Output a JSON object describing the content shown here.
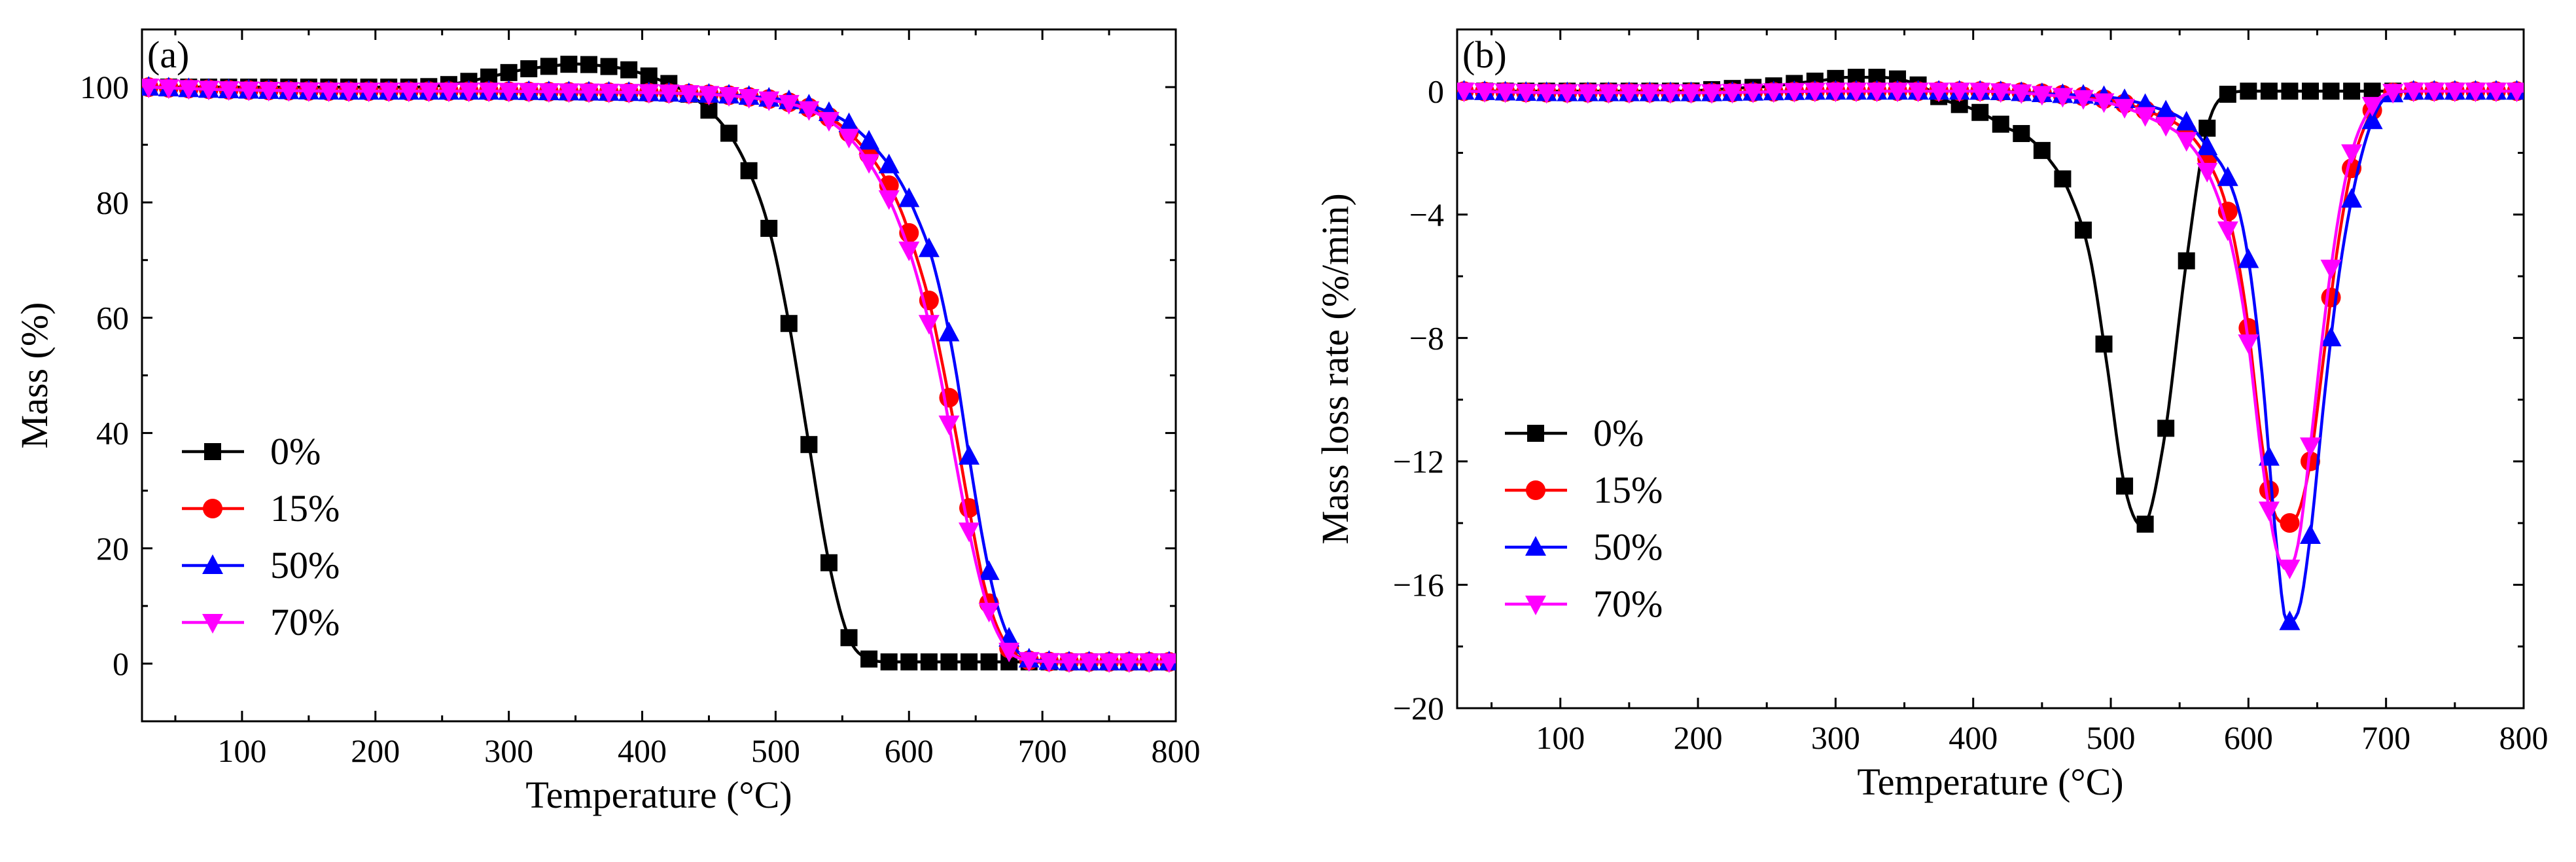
{
  "colors": {
    "0%": "#000000",
    "15%": "#ff0000",
    "50%": "#0000ff",
    "70%": "#ff00ff"
  },
  "chart_data": [
    {
      "type": "line",
      "panel_label": "(a)",
      "title": "",
      "xlabel": "Temperature (°C)",
      "ylabel": "Mass (%)",
      "xlim": [
        25,
        800
      ],
      "ylim": [
        -10,
        110
      ],
      "xticks": [
        "100",
        "200",
        "300",
        "400",
        "500",
        "600",
        "700",
        "800"
      ],
      "yticks": [
        "0",
        "20",
        "40",
        "60",
        "80",
        "100"
      ],
      "grid": false,
      "legend_position": "left-middle",
      "series": [
        {
          "name": "0%",
          "marker": "square",
          "x": [
            30,
            50,
            70,
            90,
            110,
            130,
            150,
            170,
            190,
            210,
            230,
            250,
            270,
            290,
            310,
            330,
            350,
            370,
            390,
            410,
            430,
            450,
            465,
            480,
            495,
            510,
            525,
            540,
            555,
            570,
            585,
            600,
            615,
            630,
            645,
            660,
            675,
            690,
            705,
            720,
            740,
            760,
            780,
            800
          ],
          "y": [
            100,
            100,
            100,
            100,
            100,
            100,
            100,
            100,
            100,
            100,
            100,
            100.3,
            101,
            102,
            103,
            103.6,
            104,
            103.7,
            103,
            101.5,
            99.5,
            96,
            92,
            85.5,
            75.5,
            59,
            38,
            17.5,
            4.5,
            0.8,
            0.3,
            0.3,
            0.3,
            0.3,
            0.3,
            0.3,
            0.3,
            0.3,
            0.3,
            0.3,
            0.3,
            0.3,
            0.3,
            0.3
          ]
        },
        {
          "name": "15%",
          "marker": "circle",
          "x": [
            30,
            80,
            130,
            180,
            230,
            280,
            330,
            380,
            430,
            480,
            520,
            540,
            560,
            580,
            595,
            605,
            615,
            625,
            635,
            645,
            655,
            665,
            680,
            700,
            730,
            760,
            800
          ],
          "y": [
            100,
            99.6,
            99.4,
            99.3,
            99.3,
            99.3,
            99.2,
            99.1,
            98.9,
            98.3,
            96.8,
            94.8,
            91,
            85,
            78,
            71,
            63,
            52,
            40,
            27,
            15,
            7,
            1.5,
            0.4,
            0.3,
            0.3,
            0.3
          ]
        },
        {
          "name": "50%",
          "marker": "triangle-up",
          "x": [
            30,
            80,
            130,
            180,
            230,
            280,
            330,
            380,
            430,
            480,
            520,
            540,
            560,
            580,
            595,
            605,
            615,
            625,
            635,
            645,
            655,
            665,
            680,
            700,
            730,
            760,
            800
          ],
          "y": [
            100,
            99.6,
            99.4,
            99.3,
            99.3,
            99.3,
            99.2,
            99.1,
            98.9,
            98.4,
            97.2,
            95.6,
            92.8,
            88,
            83,
            78,
            72,
            63,
            51,
            36,
            22,
            11,
            2.5,
            0.5,
            0.3,
            0.3,
            0.3
          ]
        },
        {
          "name": "70%",
          "marker": "triangle-down",
          "x": [
            30,
            80,
            130,
            180,
            230,
            280,
            330,
            380,
            430,
            480,
            520,
            540,
            560,
            580,
            595,
            605,
            615,
            625,
            635,
            645,
            655,
            665,
            680,
            700,
            730,
            760,
            800
          ],
          "y": [
            100,
            99.6,
            99.4,
            99.3,
            99.3,
            99.3,
            99.2,
            99.1,
            98.9,
            98.2,
            96.5,
            94.2,
            90,
            83,
            75,
            68,
            59,
            48,
            35,
            23,
            13,
            6,
            1.2,
            0.4,
            0.3,
            0.3,
            0.3
          ]
        }
      ]
    },
    {
      "type": "line",
      "panel_label": "(b)",
      "title": "",
      "xlabel": "Temperature (°C)",
      "ylabel": "Mass loss rate (%/min)",
      "xlim": [
        25,
        800
      ],
      "ylim": [
        -20,
        2
      ],
      "xticks": [
        "100",
        "200",
        "300",
        "400",
        "500",
        "600",
        "700",
        "800"
      ],
      "yticks": [
        "−20",
        "−16",
        "−12",
        "−8",
        "−4",
        "0"
      ],
      "grid": false,
      "legend_position": "left-middle",
      "series": [
        {
          "name": "0%",
          "marker": "square",
          "x": [
            30,
            50,
            70,
            90,
            110,
            130,
            150,
            170,
            190,
            210,
            230,
            250,
            270,
            290,
            310,
            330,
            350,
            365,
            380,
            395,
            410,
            425,
            440,
            455,
            470,
            485,
            497,
            510,
            523,
            538,
            555,
            570,
            585,
            600,
            615,
            630,
            650,
            670,
            690,
            710,
            730,
            760,
            780,
            800
          ],
          "y": [
            0,
            0,
            0,
            0,
            0,
            0,
            0,
            0,
            0,
            0.05,
            0.1,
            0.15,
            0.25,
            0.35,
            0.45,
            0.45,
            0.35,
            0.1,
            -0.3,
            -0.5,
            -0.8,
            -1.2,
            -1.5,
            -2.2,
            -3.3,
            -5.4,
            -8.8,
            -12.8,
            -14.1,
            -11.5,
            -5.5,
            -1.2,
            -0.1,
            0,
            0,
            0,
            0,
            0,
            0,
            0,
            0,
            0,
            0,
            0
          ]
        },
        {
          "name": "15%",
          "marker": "circle",
          "x": [
            30,
            100,
            200,
            300,
            400,
            460,
            500,
            530,
            555,
            570,
            585,
            598,
            610,
            620,
            628,
            636,
            645,
            655,
            665,
            675,
            688,
            700,
            720,
            760,
            800
          ],
          "y": [
            0,
            -0.05,
            -0.05,
            0,
            0,
            -0.1,
            -0.3,
            -0.7,
            -1.3,
            -2.2,
            -3.9,
            -7,
            -11.5,
            -13.8,
            -14,
            -13.7,
            -12,
            -8.5,
            -5,
            -2.5,
            -0.8,
            -0.1,
            0,
            0,
            0
          ]
        },
        {
          "name": "50%",
          "marker": "triangle-up",
          "x": [
            30,
            100,
            200,
            300,
            400,
            460,
            500,
            530,
            555,
            570,
            585,
            598,
            610,
            620,
            628,
            636,
            645,
            655,
            665,
            675,
            688,
            700,
            720,
            760,
            800
          ],
          "y": [
            0,
            -0.05,
            -0.05,
            0,
            0,
            -0.1,
            -0.2,
            -0.5,
            -1,
            -1.8,
            -2.8,
            -4.9,
            -9.2,
            -14.5,
            -17.2,
            -16.9,
            -14.4,
            -10,
            -6.2,
            -3.5,
            -1.2,
            -0.2,
            0,
            0,
            0
          ]
        },
        {
          "name": "70%",
          "marker": "triangle-down",
          "x": [
            30,
            100,
            200,
            300,
            400,
            460,
            500,
            530,
            555,
            570,
            585,
            598,
            610,
            620,
            628,
            636,
            645,
            655,
            665,
            675,
            688,
            700,
            720,
            760,
            800
          ],
          "y": [
            0,
            -0.05,
            -0.05,
            0,
            0,
            -0.15,
            -0.4,
            -0.9,
            -1.6,
            -2.6,
            -4.5,
            -7.5,
            -12,
            -14.8,
            -15.5,
            -14.7,
            -11.5,
            -7.5,
            -4.2,
            -2,
            -0.6,
            -0.1,
            0,
            0,
            0
          ]
        }
      ]
    }
  ]
}
